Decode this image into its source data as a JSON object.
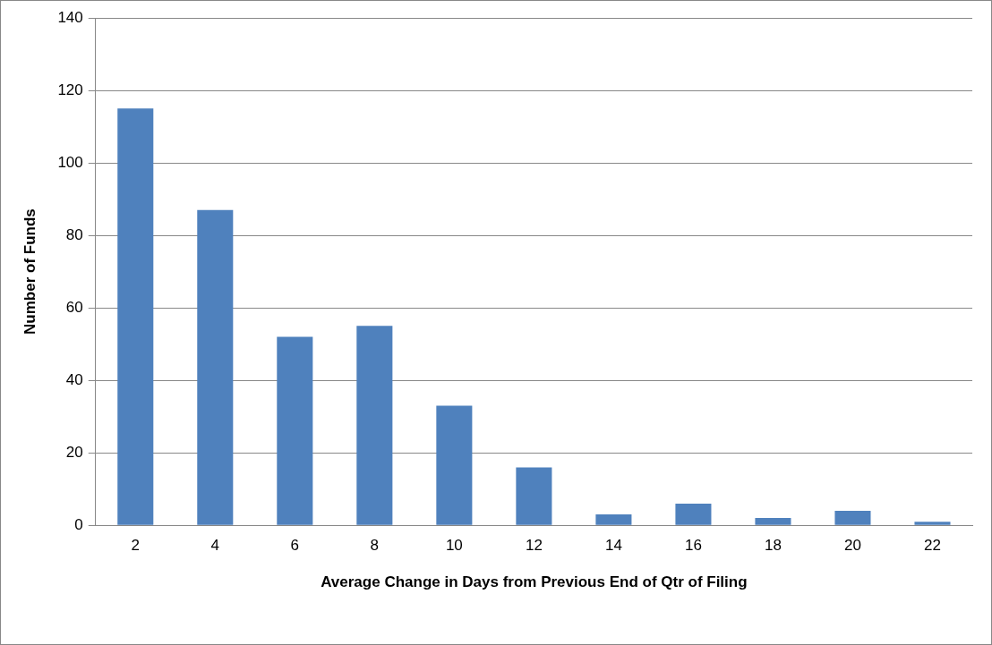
{
  "chart_data": {
    "type": "bar",
    "xlabel": "Average Change in Days from Previous End of Qtr of Filing",
    "ylabel": "Number of Funds",
    "categories": [
      "2",
      "4",
      "6",
      "8",
      "10",
      "12",
      "14",
      "16",
      "18",
      "20",
      "22"
    ],
    "values": [
      115,
      87,
      52,
      55,
      33,
      16,
      3,
      6,
      2,
      4,
      1
    ],
    "color": "#4f81bd",
    "ylim": [
      0,
      140
    ],
    "yticks": [
      0,
      20,
      40,
      60,
      80,
      100,
      120,
      140
    ],
    "grid": "y",
    "legend": false
  }
}
